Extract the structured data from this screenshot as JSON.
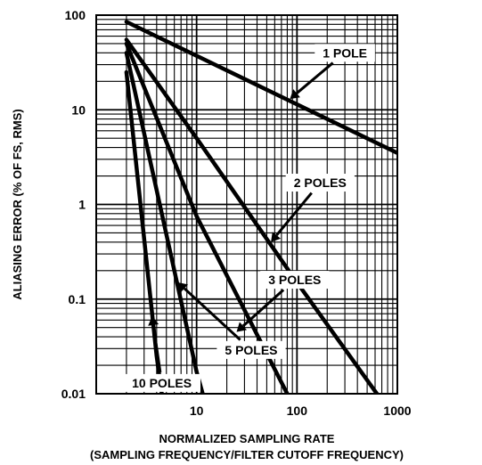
{
  "chart_data": {
    "type": "line",
    "title": "",
    "xlabel": "NORMALIZED SAMPLING RATE",
    "xlabel2": "(SAMPLING FREQUENCY/FILTER CUTOFF FREQUENCY)",
    "ylabel": "ALIASING ERROR (% OF FS, RMS)",
    "xscale": "log",
    "yscale": "log",
    "xlim": [
      1,
      1000
    ],
    "ylim": [
      0.01,
      100
    ],
    "grid": true,
    "x_ticks": [
      {
        "value": 10,
        "label": "10"
      },
      {
        "value": 100,
        "label": "100"
      },
      {
        "value": 1000,
        "label": "1000"
      }
    ],
    "y_ticks": [
      {
        "value": 100,
        "label": "100"
      },
      {
        "value": 10,
        "label": "10"
      },
      {
        "value": 1,
        "label": "1"
      },
      {
        "value": 0.1,
        "label": "0.1"
      },
      {
        "value": 0.01,
        "label": "0.01"
      }
    ],
    "series": [
      {
        "name": "1 POLE",
        "x": [
          2,
          1000
        ],
        "y": [
          85,
          3.5
        ]
      },
      {
        "name": "2 POLES",
        "x": [
          2,
          10,
          100,
          1000
        ],
        "y": [
          55,
          5,
          0.15,
          0.005
        ]
      },
      {
        "name": "3 POLES",
        "x": [
          2,
          10,
          80
        ],
        "y": [
          50,
          0.75,
          0.01
        ]
      },
      {
        "name": "5 POLES",
        "x": [
          2,
          10,
          11.5
        ],
        "y": [
          40,
          0.017,
          0.01
        ]
      },
      {
        "name": "10 POLES",
        "x": [
          2,
          4,
          4.5
        ],
        "y": [
          25,
          0.025,
          0.01
        ]
      }
    ],
    "annotations": [
      {
        "text": "1 POLE",
        "series": "1 POLE",
        "x": 300,
        "y": 40,
        "arrow_to": [
          85,
          13
        ]
      },
      {
        "text": "2 POLES",
        "series": "2 POLES",
        "x": 170,
        "y": 1.7,
        "arrow_to": [
          55,
          0.4
        ]
      },
      {
        "text": "3 POLES",
        "series": "3 POLES",
        "x": 95,
        "y": 0.16,
        "arrow_to": [
          25,
          0.045
        ]
      },
      {
        "text": "5 POLES",
        "series": "5 POLES",
        "x": 35,
        "y": 0.029,
        "arrow_to": [
          6.5,
          0.15
        ]
      },
      {
        "text": "10 POLES",
        "series": "10 POLES",
        "x": 4.5,
        "y": 0.013,
        "arrow_to": [
          3.6,
          0.066
        ]
      }
    ],
    "colors": {
      "line": "#000000",
      "grid": "#000000",
      "background": "#ffffff"
    }
  }
}
